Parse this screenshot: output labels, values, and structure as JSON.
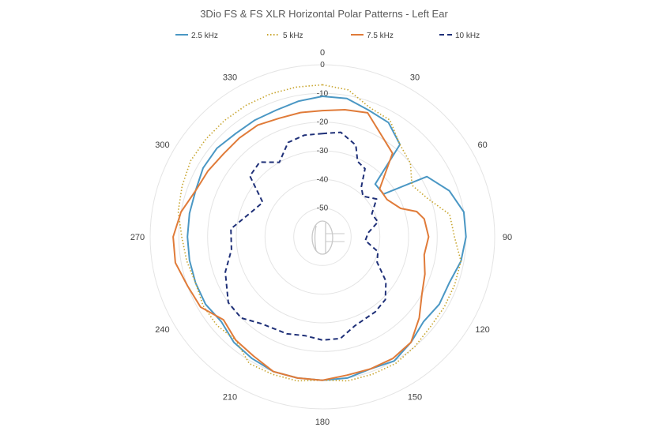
{
  "chart_data": {
    "type": "polar-line",
    "title": "3Dio FS & FS XLR Horizontal Polar Patterns - Left Ear",
    "angle_ticks": [
      0,
      30,
      60,
      90,
      120,
      150,
      180,
      210,
      240,
      270,
      300,
      330
    ],
    "r_ticks": [
      0,
      -10,
      -20,
      -30,
      -40,
      -50
    ],
    "r_range": [
      -60,
      0
    ],
    "grid": true,
    "legend_position": "top",
    "series": [
      {
        "name": "2.5 kHz",
        "color": "#4a97c4",
        "dash": "solid",
        "points": [
          [
            0,
            -11
          ],
          [
            10,
            -11
          ],
          [
            20,
            -13
          ],
          [
            30,
            -14
          ],
          [
            40,
            -18
          ],
          [
            45,
            -34
          ],
          [
            55,
            -34
          ],
          [
            60,
            -18
          ],
          [
            70,
            -13
          ],
          [
            80,
            -10
          ],
          [
            90,
            -10
          ],
          [
            100,
            -11
          ],
          [
            110,
            -13
          ],
          [
            120,
            -13
          ],
          [
            130,
            -14
          ],
          [
            140,
            -12
          ],
          [
            150,
            -10
          ],
          [
            160,
            -11
          ],
          [
            170,
            -10
          ],
          [
            180,
            -10
          ],
          [
            190,
            -10
          ],
          [
            200,
            -10
          ],
          [
            210,
            -11
          ],
          [
            220,
            -12
          ],
          [
            230,
            -14
          ],
          [
            240,
            -13
          ],
          [
            250,
            -13
          ],
          [
            260,
            -13
          ],
          [
            270,
            -13
          ],
          [
            280,
            -13
          ],
          [
            290,
            -13
          ],
          [
            300,
            -12
          ],
          [
            310,
            -12
          ],
          [
            320,
            -13
          ],
          [
            330,
            -13
          ],
          [
            340,
            -13
          ],
          [
            350,
            -12
          ]
        ]
      },
      {
        "name": "5 kHz",
        "color": "#c8a52e",
        "dash": "dotted",
        "points": [
          [
            0,
            -7
          ],
          [
            10,
            -8
          ],
          [
            20,
            -12
          ],
          [
            30,
            -13
          ],
          [
            40,
            -18
          ],
          [
            50,
            -20
          ],
          [
            60,
            -24
          ],
          [
            70,
            -21
          ],
          [
            80,
            -15
          ],
          [
            90,
            -14
          ],
          [
            100,
            -11
          ],
          [
            110,
            -11
          ],
          [
            120,
            -11
          ],
          [
            130,
            -11
          ],
          [
            140,
            -10
          ],
          [
            150,
            -9
          ],
          [
            160,
            -9
          ],
          [
            170,
            -9
          ],
          [
            180,
            -10
          ],
          [
            190,
            -9
          ],
          [
            200,
            -9
          ],
          [
            210,
            -9
          ],
          [
            220,
            -13
          ],
          [
            230,
            -12
          ],
          [
            240,
            -12
          ],
          [
            250,
            -13
          ],
          [
            260,
            -12
          ],
          [
            270,
            -11
          ],
          [
            280,
            -9
          ],
          [
            290,
            -8
          ],
          [
            300,
            -7
          ],
          [
            310,
            -7
          ],
          [
            320,
            -7
          ],
          [
            330,
            -7
          ],
          [
            340,
            -7
          ],
          [
            350,
            -7
          ]
        ]
      },
      {
        "name": "7.5 kHz",
        "color": "#e07b39",
        "dash": "solid",
        "points": [
          [
            0,
            -16
          ],
          [
            10,
            -15
          ],
          [
            20,
            -14
          ],
          [
            30,
            -19
          ],
          [
            40,
            -22
          ],
          [
            50,
            -34
          ],
          [
            60,
            -34
          ],
          [
            70,
            -31
          ],
          [
            75,
            -26
          ],
          [
            80,
            -24
          ],
          [
            90,
            -23
          ],
          [
            100,
            -24
          ],
          [
            110,
            -22
          ],
          [
            120,
            -20
          ],
          [
            130,
            -16
          ],
          [
            140,
            -12
          ],
          [
            150,
            -11
          ],
          [
            160,
            -11
          ],
          [
            170,
            -11
          ],
          [
            180,
            -10
          ],
          [
            190,
            -10
          ],
          [
            200,
            -10
          ],
          [
            210,
            -12
          ],
          [
            220,
            -13
          ],
          [
            230,
            -15
          ],
          [
            240,
            -11
          ],
          [
            250,
            -10
          ],
          [
            260,
            -8
          ],
          [
            270,
            -8
          ],
          [
            280,
            -10
          ],
          [
            290,
            -13
          ],
          [
            300,
            -14
          ],
          [
            310,
            -15
          ],
          [
            320,
            -15
          ],
          [
            330,
            -15
          ],
          [
            340,
            -16
          ],
          [
            350,
            -16
          ]
        ]
      },
      {
        "name": "10 kHz",
        "color": "#1f3078",
        "dash": "dashed",
        "points": [
          [
            0,
            -24
          ],
          [
            10,
            -23
          ],
          [
            20,
            -26
          ],
          [
            25,
            -31
          ],
          [
            32,
            -32
          ],
          [
            38,
            -38
          ],
          [
            45,
            -40
          ],
          [
            55,
            -37
          ],
          [
            65,
            -41
          ],
          [
            75,
            -40
          ],
          [
            85,
            -44
          ],
          [
            95,
            -45
          ],
          [
            105,
            -40
          ],
          [
            115,
            -39
          ],
          [
            125,
            -33
          ],
          [
            135,
            -29
          ],
          [
            145,
            -28
          ],
          [
            160,
            -27
          ],
          [
            170,
            -24
          ],
          [
            180,
            -24
          ],
          [
            190,
            -25
          ],
          [
            200,
            -24
          ],
          [
            215,
            -23
          ],
          [
            225,
            -20
          ],
          [
            235,
            -20
          ],
          [
            250,
            -24
          ],
          [
            262,
            -28
          ],
          [
            275,
            -28
          ],
          [
            290,
            -34
          ],
          [
            300,
            -36
          ],
          [
            310,
            -27
          ],
          [
            320,
            -26
          ],
          [
            330,
            -30
          ],
          [
            340,
            -25
          ],
          [
            350,
            -24
          ]
        ]
      }
    ]
  }
}
